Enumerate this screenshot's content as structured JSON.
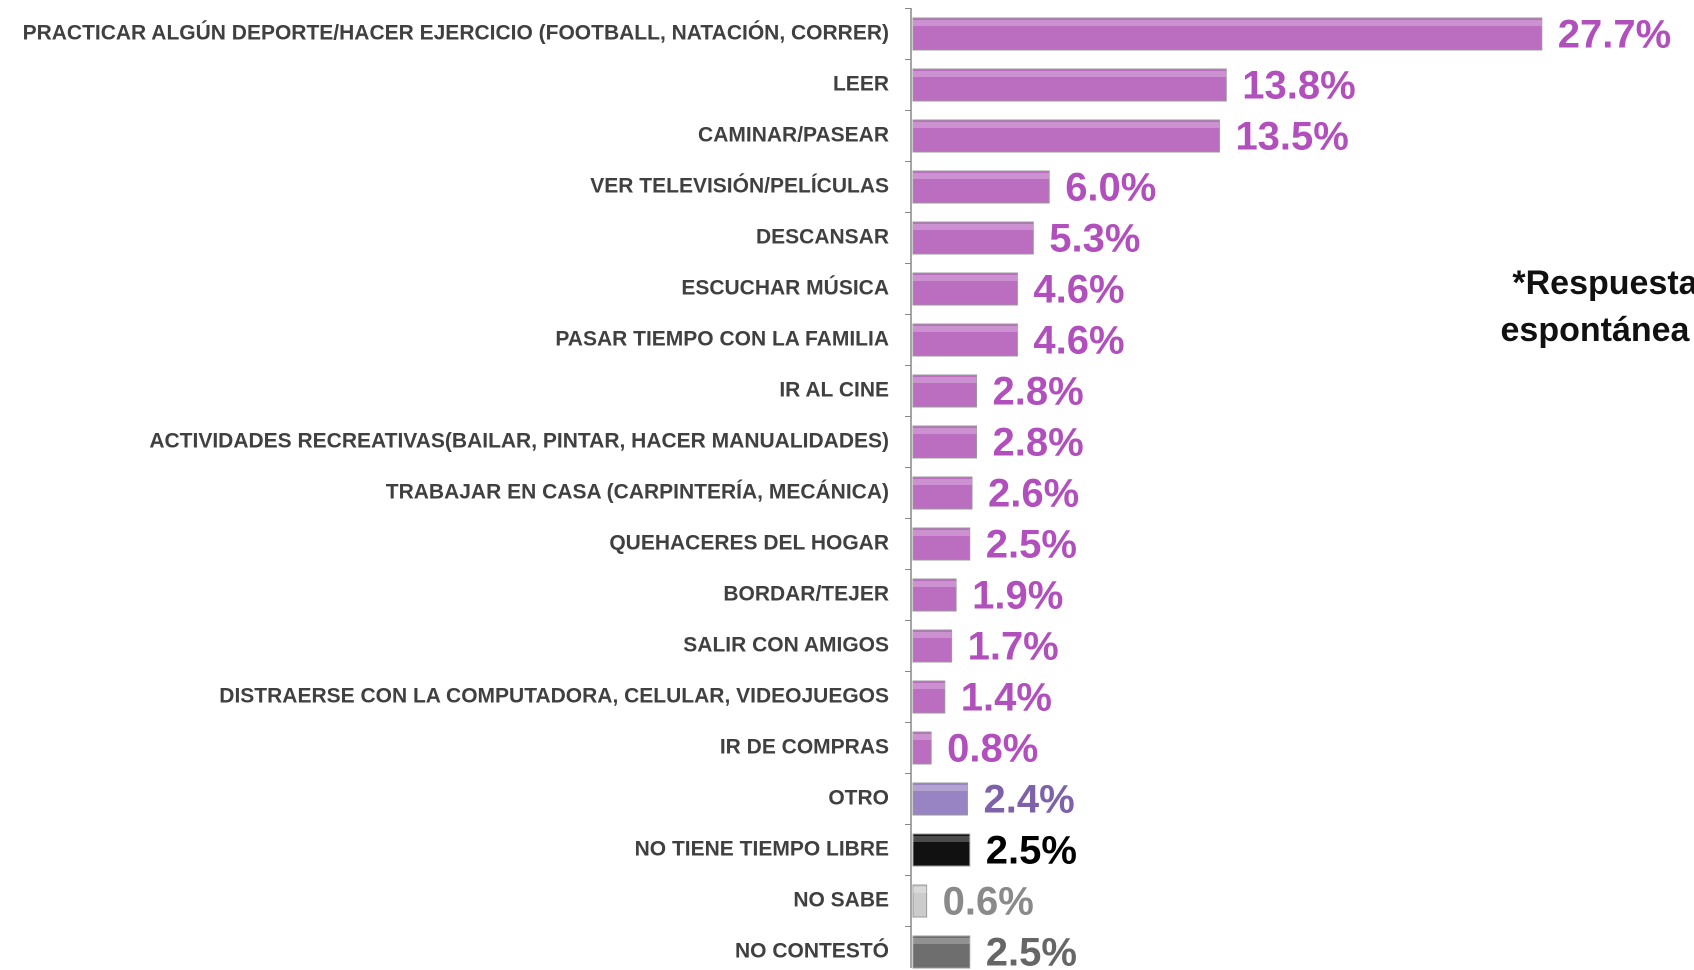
{
  "chart_data": {
    "type": "barh",
    "annotation": [
      "*Respuesta",
      "espontánea"
    ],
    "categories": [
      "PRACTICAR ALGÚN DEPORTE/HACER EJERCICIO (FOOTBALL, NATACIÓN, CORRER)",
      "LEER",
      "CAMINAR/PASEAR",
      "VER TELEVISIÓN/PELÍCULAS",
      "DESCANSAR",
      "ESCUCHAR MÚSICA",
      "PASAR TIEMPO CON LA FAMILIA",
      "IR AL CINE",
      "ACTIVIDADES RECREATIVAS(BAILAR, PINTAR, HACER MANUALIDADES)",
      "TRABAJAR EN CASA  (CARPINTERÍA, MECÁNICA)",
      "QUEHACERES DEL HOGAR",
      "BORDAR/TEJER",
      "SALIR CON AMIGOS",
      "DISTRAERSE CON LA COMPUTADORA, CELULAR, VIDEOJUEGOS",
      "IR DE COMPRAS",
      "OTRO",
      "NO TIENE TIEMPO LIBRE",
      "NO SABE",
      "NO CONTESTÓ"
    ],
    "values": [
      27.7,
      13.8,
      13.5,
      6.0,
      5.3,
      4.6,
      4.6,
      2.8,
      2.8,
      2.6,
      2.5,
      1.9,
      1.7,
      1.4,
      0.8,
      2.4,
      2.5,
      0.6,
      2.5
    ],
    "value_labels": [
      "27.7%",
      "13.8%",
      "13.5%",
      "6.0%",
      "5.3%",
      "4.6%",
      "4.6%",
      "2.8%",
      "2.8%",
      "2.6%",
      "2.5%",
      "1.9%",
      "1.7%",
      "1.4%",
      "0.8%",
      "2.4%",
      "2.5%",
      "0.6%",
      "2.5%"
    ],
    "colors": [
      "#bb6dc0",
      "#bb6dc0",
      "#bb6dc0",
      "#bb6dc0",
      "#bb6dc0",
      "#bb6dc0",
      "#bb6dc0",
      "#bb6dc0",
      "#bb6dc0",
      "#bb6dc0",
      "#bb6dc0",
      "#bb6dc0",
      "#bb6dc0",
      "#bb6dc0",
      "#bb6dc0",
      "#9884c2",
      "#111111",
      "#cccccc",
      "#6e6e6e"
    ],
    "label_colors": [
      "#b14fbc",
      "#b14fbc",
      "#b14fbc",
      "#b14fbc",
      "#b14fbc",
      "#b14fbc",
      "#b14fbc",
      "#b14fbc",
      "#b14fbc",
      "#b14fbc",
      "#b14fbc",
      "#b14fbc",
      "#b14fbc",
      "#b14fbc",
      "#b14fbc",
      "#7d62aa",
      "#000000",
      "#8a8a8a",
      "#666666"
    ]
  }
}
